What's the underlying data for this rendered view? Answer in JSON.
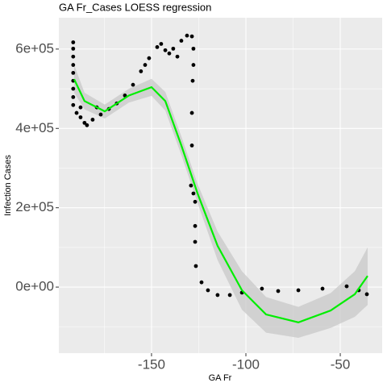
{
  "chart_data": {
    "type": "scatter",
    "title": "GA Fr_Cases LOESS regression",
    "x_label": "GA Fr",
    "y_label": "Infection Cases",
    "xlim": [
      -199.1,
      -27.8
    ],
    "ylim": [
      -166500,
      679000
    ],
    "xticks": [
      -150,
      -100,
      -50
    ],
    "yticks": [
      {
        "value": 0,
        "label": "0e+00"
      },
      {
        "value": 200000,
        "label": "2e+05"
      },
      {
        "value": 400000,
        "label": "4e+05"
      },
      {
        "value": 600000,
        "label": "6e+05"
      }
    ],
    "minor_xticks": [
      -175,
      -125,
      -75
    ],
    "minor_yticks": [
      -100000,
      100000,
      300000,
      500000
    ],
    "grid": true,
    "points": {
      "color": "#000000",
      "x": [
        -191.5,
        -191.5,
        -191.5,
        -191.5,
        -191.5,
        -191.5,
        -191.5,
        -191.5,
        -191.5,
        -189.7,
        -187.6,
        -185.5,
        -184.2,
        -181.2,
        -176.9,
        -172.6,
        -168.4,
        -164.1,
        -187.6,
        -179,
        -159.8,
        -155.6,
        -153.4,
        -151.3,
        -147,
        -144.9,
        -142.7,
        -140.6,
        -138.5,
        -136.3,
        -134.2,
        -131.2,
        -128.6,
        -127.8,
        -127.8,
        -128.2,
        -128.6,
        -128.6,
        -129.1,
        -127.8,
        -126.9,
        -126.9,
        -126.9,
        -126.5,
        -123.5,
        -120.1,
        -115,
        -108.5,
        -102.1,
        -91.5,
        -82.9,
        -72.2,
        -59.4,
        -46.6,
        -40.2,
        -35.9
      ],
      "y": [
        617000,
        601000,
        581000,
        560000,
        540000,
        520000,
        500000,
        479000,
        459000,
        439000,
        428000,
        414000,
        408000,
        422000,
        435000,
        449000,
        463000,
        483000,
        453000,
        453000,
        510000,
        544000,
        560000,
        577000,
        605000,
        613000,
        597000,
        589000,
        601000,
        581000,
        621000,
        634000,
        632000,
        601000,
        560000,
        520000,
        439000,
        357000,
        256000,
        236000,
        215000,
        154000,
        114000,
        53000,
        12000,
        -8000,
        -20000,
        -20000,
        -14000,
        -4000,
        -10000,
        -8000,
        -4000,
        2000,
        -8000,
        -18000
      ]
    },
    "fit": {
      "color": "#00ee00",
      "band_color": "#c8c8c8",
      "x": [
        -191,
        -185.5,
        -174.8,
        -162,
        -150,
        -142.7,
        -134.2,
        -125.6,
        -115,
        -102.1,
        -89.3,
        -72.2,
        -55.1,
        -42.3,
        -35.5
      ],
      "y": [
        524000,
        469000,
        443000,
        483000,
        504000,
        469000,
        357000,
        236000,
        104000,
        -8000,
        -69000,
        -89000,
        -59000,
        -18000,
        28000
      ],
      "lower": [
        490000,
        448000,
        425000,
        465000,
        482000,
        445000,
        333000,
        212000,
        68000,
        -57000,
        -115000,
        -128000,
        -103000,
        -75000,
        -45000
      ],
      "upper": [
        560000,
        490000,
        460000,
        500000,
        525000,
        492000,
        380000,
        260000,
        140000,
        40000,
        -25000,
        -50000,
        -15000,
        40000,
        100000
      ]
    }
  }
}
